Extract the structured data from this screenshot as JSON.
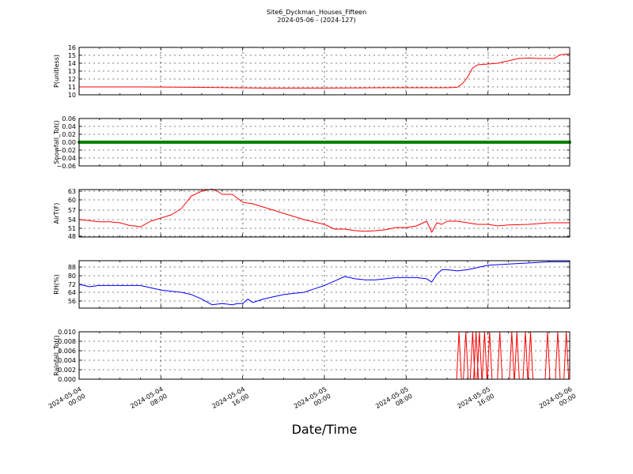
{
  "figure": {
    "title": "Site6_Dyckman_Houses_Fifteen",
    "subtitle": "2024-05-06 - (2024-127)",
    "xlabel": "Date/Time"
  },
  "chart_data": [
    {
      "type": "line",
      "ylabel": "P(unitless)",
      "ylim": [
        10,
        16
      ],
      "yticks": [
        "10",
        "11",
        "12",
        "13",
        "14",
        "15",
        "16"
      ],
      "color": "#ff0000",
      "grid": true,
      "x_range": [
        "2024-05-04 00:00",
        "2024-05-06 00:00"
      ],
      "series": [
        {
          "x": [
            "2024-05-04 00:00",
            "2024-05-04 06:00",
            "2024-05-04 12:00",
            "2024-05-04 18:00",
            "2024-05-05 00:00",
            "2024-05-05 06:00",
            "2024-05-05 10:00",
            "2024-05-05 12:00",
            "2024-05-05 13:00",
            "2024-05-05 13:30",
            "2024-05-05 14:00",
            "2024-05-05 14:30",
            "2024-05-05 15:00",
            "2024-05-05 16:00",
            "2024-05-05 17:00",
            "2024-05-05 18:00",
            "2024-05-05 19:00",
            "2024-05-05 20:00",
            "2024-05-05 21:00",
            "2024-05-05 22:00",
            "2024-05-05 22:30",
            "2024-05-05 23:00",
            "2024-05-06 00:00"
          ],
          "values": [
            11.0,
            11.0,
            10.95,
            10.85,
            10.85,
            10.9,
            10.9,
            10.9,
            10.95,
            11.4,
            12.2,
            13.4,
            13.8,
            13.9,
            14.0,
            14.3,
            14.6,
            14.65,
            14.6,
            14.6,
            14.6,
            15.05,
            15.2
          ]
        }
      ]
    },
    {
      "type": "scatter",
      "ylabel": "Snowfall_Tot()",
      "ylim": [
        -0.06,
        0.06
      ],
      "yticks": [
        "−0.06",
        "−0.04",
        "−0.02",
        "0.00",
        "0.02",
        "0.04",
        "0.06"
      ],
      "color": "#008000",
      "grid": true,
      "x_range": [
        "2024-05-04 00:00",
        "2024-05-06 00:00"
      ],
      "series": [
        {
          "constant": 0.0,
          "step_minutes": 5
        }
      ]
    },
    {
      "type": "line",
      "ylabel": "AirT(F)",
      "ylim": [
        48,
        63
      ],
      "yticks": [
        "48",
        "51",
        "54",
        "57",
        "60",
        "63"
      ],
      "color": "#ff0000",
      "grid": true,
      "x_range": [
        "2024-05-04 00:00",
        "2024-05-06 00:00"
      ],
      "series": [
        {
          "x": [
            "2024-05-04 00:00",
            "2024-05-04 01:00",
            "2024-05-04 02:00",
            "2024-05-04 03:00",
            "2024-05-04 04:00",
            "2024-05-04 05:00",
            "2024-05-04 05:30",
            "2024-05-04 06:00",
            "2024-05-04 07:00",
            "2024-05-04 08:00",
            "2024-05-04 09:00",
            "2024-05-04 10:00",
            "2024-05-04 10:30",
            "2024-05-04 11:00",
            "2024-05-04 12:00",
            "2024-05-04 13:00",
            "2024-05-04 13:30",
            "2024-05-04 14:00",
            "2024-05-04 15:00",
            "2024-05-04 16:00",
            "2024-05-04 17:00",
            "2024-05-04 18:00",
            "2024-05-04 19:00",
            "2024-05-04 20:00",
            "2024-05-04 21:00",
            "2024-05-04 22:00",
            "2024-05-05 00:00",
            "2024-05-05 01:00",
            "2024-05-05 02:00",
            "2024-05-05 03:00",
            "2024-05-05 04:00",
            "2024-05-05 05:00",
            "2024-05-05 06:00",
            "2024-05-05 07:00",
            "2024-05-05 08:00",
            "2024-05-05 09:00",
            "2024-05-05 10:00",
            "2024-05-05 10:30",
            "2024-05-05 11:00",
            "2024-05-05 11:30",
            "2024-05-05 12:00",
            "2024-05-05 13:00",
            "2024-05-05 14:00",
            "2024-05-05 15:00",
            "2024-05-05 16:00",
            "2024-05-05 17:00",
            "2024-05-05 18:00",
            "2024-05-05 20:00",
            "2024-05-05 22:00",
            "2024-05-05 23:00",
            "2024-05-06 00:00"
          ],
          "values": [
            53.5,
            53.2,
            52.8,
            52.8,
            52.5,
            51.6,
            51.5,
            51.2,
            53.0,
            54.0,
            55.0,
            57.0,
            59.0,
            61.0,
            62.5,
            63.2,
            62.5,
            61.5,
            61.5,
            59.0,
            58.5,
            57.5,
            56.5,
            55.5,
            54.5,
            53.5,
            52.0,
            50.5,
            50.5,
            50.0,
            49.8,
            50.0,
            50.3,
            51.0,
            51.0,
            51.5,
            53.0,
            49.5,
            52.5,
            52.0,
            53.0,
            53.0,
            52.5,
            52.0,
            52.0,
            51.5,
            51.8,
            52.0,
            52.5,
            52.5,
            52.5
          ]
        }
      ]
    },
    {
      "type": "line",
      "ylabel": "RH(%)",
      "ylim": [
        50,
        92
      ],
      "yticks": [
        "56",
        "64",
        "72",
        "80",
        "88"
      ],
      "color": "#0000ff",
      "grid": true,
      "x_range": [
        "2024-05-04 00:00",
        "2024-05-06 00:00"
      ],
      "series": [
        {
          "x": [
            "2024-05-04 00:00",
            "2024-05-04 01:00",
            "2024-05-04 02:00",
            "2024-05-04 03:00",
            "2024-05-04 04:00",
            "2024-05-04 05:00",
            "2024-05-04 06:00",
            "2024-05-04 07:00",
            "2024-05-04 08:00",
            "2024-05-04 09:00",
            "2024-05-04 10:00",
            "2024-05-04 11:00",
            "2024-05-04 12:00",
            "2024-05-04 13:00",
            "2024-05-04 14:00",
            "2024-05-04 15:00",
            "2024-05-04 15:30",
            "2024-05-04 16:00",
            "2024-05-04 16:30",
            "2024-05-04 17:00",
            "2024-05-04 18:00",
            "2024-05-04 19:00",
            "2024-05-04 20:00",
            "2024-05-04 21:00",
            "2024-05-04 22:00",
            "2024-05-04 23:00",
            "2024-05-05 00:00",
            "2024-05-05 01:00",
            "2024-05-05 02:00",
            "2024-05-05 03:00",
            "2024-05-05 04:00",
            "2024-05-05 05:00",
            "2024-05-05 06:00",
            "2024-05-05 07:00",
            "2024-05-05 08:00",
            "2024-05-05 09:00",
            "2024-05-05 10:00",
            "2024-05-05 10:30",
            "2024-05-05 11:00",
            "2024-05-05 11:30",
            "2024-05-05 12:00",
            "2024-05-05 13:00",
            "2024-05-05 14:00",
            "2024-05-05 15:00",
            "2024-05-05 16:00",
            "2024-05-05 18:00",
            "2024-05-05 20:00",
            "2024-05-05 22:00",
            "2024-05-06 00:00"
          ],
          "values": [
            71,
            69,
            70,
            70,
            70,
            70,
            70,
            68,
            66,
            65,
            64,
            62,
            58,
            53,
            54,
            53,
            54,
            54,
            58,
            55,
            58,
            60,
            62,
            63,
            64,
            67,
            70,
            74,
            78,
            76,
            75,
            75,
            76,
            77,
            77,
            77,
            76,
            73,
            80,
            84,
            84,
            83,
            84,
            86,
            88,
            89,
            90,
            91,
            91
          ]
        }
      ]
    },
    {
      "type": "line",
      "ylabel": "Rainfall_Tot()",
      "ylim": [
        0,
        0.01
      ],
      "yticks": [
        "0.000",
        "0.002",
        "0.004",
        "0.006",
        "0.008",
        "0.010"
      ],
      "color": "#ff0000",
      "grid": true,
      "x_range": [
        "2024-05-04 00:00",
        "2024-05-06 00:00"
      ],
      "x_ticks": [
        "2024-05-04 00:00",
        "2024-05-04 08:00",
        "2024-05-04 16:00",
        "2024-05-05 00:00",
        "2024-05-05 08:00",
        "2024-05-05 16:00",
        "2024-05-06 00:00"
      ],
      "series": [
        {
          "baseline": 0.0,
          "spikes": [
            {
              "x": "2024-05-05 13:10",
              "value": 0.01
            },
            {
              "x": "2024-05-05 13:50",
              "value": 0.01
            },
            {
              "x": "2024-05-05 14:30",
              "value": 0.01
            },
            {
              "x": "2024-05-05 14:50",
              "value": 0.01
            },
            {
              "x": "2024-05-05 15:10",
              "value": 0.01
            },
            {
              "x": "2024-05-05 15:40",
              "value": 0.01
            },
            {
              "x": "2024-05-05 16:10",
              "value": 0.01
            },
            {
              "x": "2024-05-05 17:10",
              "value": 0.01
            },
            {
              "x": "2024-05-05 18:20",
              "value": 0.01
            },
            {
              "x": "2024-05-05 18:50",
              "value": 0.01
            },
            {
              "x": "2024-05-05 19:40",
              "value": 0.01
            },
            {
              "x": "2024-05-05 20:10",
              "value": 0.01
            },
            {
              "x": "2024-05-05 21:50",
              "value": 0.01
            },
            {
              "x": "2024-05-05 22:50",
              "value": 0.01
            },
            {
              "x": "2024-05-05 23:40",
              "value": 0.01
            }
          ]
        }
      ]
    }
  ]
}
